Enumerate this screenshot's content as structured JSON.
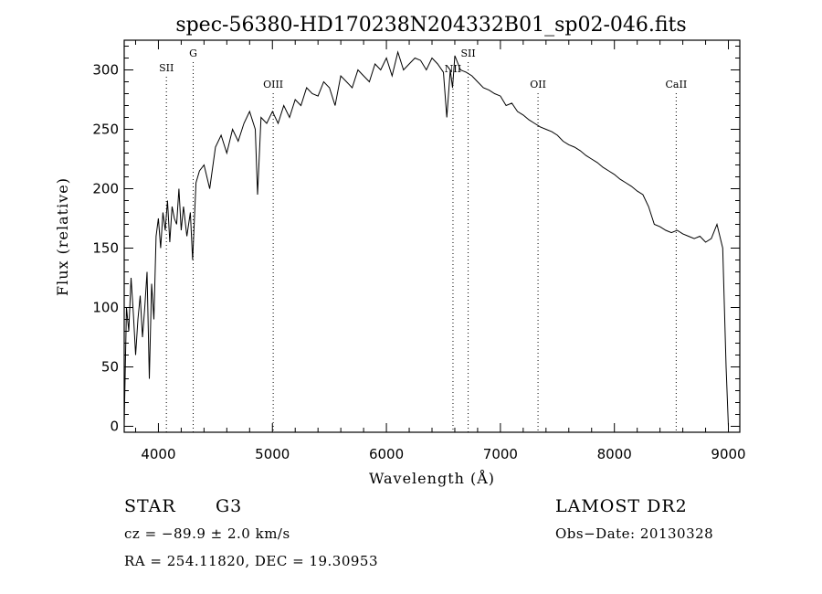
{
  "chart_data": {
    "type": "line",
    "title": "spec-56380-HD170238N204332B01_sp02-046.fits",
    "xlabel": "Wavelength (Å)",
    "ylabel": "Flux (relative)",
    "xlim": [
      3700,
      9100
    ],
    "ylim": [
      -5,
      325
    ],
    "xticks": [
      4000,
      5000,
      6000,
      7000,
      8000,
      9000
    ],
    "yticks": [
      0,
      50,
      100,
      150,
      200,
      250,
      300
    ],
    "grid": false,
    "series": [
      {
        "x": [
          3700,
          3720,
          3740,
          3760,
          3780,
          3800,
          3820,
          3840,
          3860,
          3880,
          3900,
          3920,
          3940,
          3960,
          3980,
          4000,
          4020,
          4040,
          4060,
          4080,
          4100,
          4120,
          4140,
          4160,
          4180,
          4200,
          4220,
          4250,
          4280,
          4300,
          4330,
          4360,
          4400,
          4450,
          4500,
          4550,
          4600,
          4650,
          4700,
          4750,
          4800,
          4850,
          4870,
          4900,
          4950,
          5000,
          5050,
          5100,
          5150,
          5200,
          5250,
          5300,
          5350,
          5400,
          5450,
          5500,
          5550,
          5600,
          5650,
          5700,
          5750,
          5800,
          5850,
          5900,
          5950,
          6000,
          6050,
          6100,
          6150,
          6200,
          6250,
          6300,
          6350,
          6400,
          6450,
          6500,
          6530,
          6560,
          6580,
          6600,
          6650,
          6700,
          6750,
          6800,
          6850,
          6900,
          6950,
          7000,
          7050,
          7100,
          7150,
          7200,
          7250,
          7300,
          7350,
          7400,
          7450,
          7500,
          7550,
          7600,
          7650,
          7700,
          7750,
          7800,
          7850,
          7900,
          7950,
          8000,
          8050,
          8100,
          8150,
          8200,
          8250,
          8300,
          8350,
          8400,
          8450,
          8500,
          8550,
          8600,
          8650,
          8700,
          8750,
          8800,
          8850,
          8900,
          8950,
          8980,
          9000
        ],
        "y": [
          2,
          100,
          80,
          125,
          95,
          60,
          90,
          110,
          75,
          100,
          130,
          40,
          120,
          90,
          160,
          175,
          150,
          180,
          165,
          190,
          155,
          185,
          175,
          170,
          200,
          165,
          185,
          160,
          180,
          140,
          205,
          215,
          220,
          200,
          235,
          245,
          230,
          250,
          240,
          255,
          265,
          250,
          195,
          260,
          255,
          265,
          255,
          270,
          260,
          275,
          270,
          285,
          280,
          278,
          290,
          285,
          270,
          295,
          290,
          285,
          300,
          295,
          290,
          305,
          300,
          310,
          295,
          315,
          300,
          305,
          310,
          308,
          300,
          310,
          305,
          298,
          260,
          300,
          285,
          312,
          300,
          298,
          295,
          290,
          285,
          283,
          280,
          278,
          270,
          272,
          265,
          262,
          258,
          255,
          252,
          250,
          248,
          245,
          240,
          237,
          235,
          232,
          228,
          225,
          222,
          218,
          215,
          212,
          208,
          205,
          202,
          198,
          195,
          185,
          170,
          168,
          165,
          163,
          165,
          162,
          160,
          158,
          160,
          155,
          158,
          170,
          150,
          50,
          0
        ]
      }
    ],
    "line_markers": [
      {
        "label": "SII",
        "x": 4070
      },
      {
        "label": "G",
        "x": 4305
      },
      {
        "label": "OIII",
        "x": 5007
      },
      {
        "label": "NII",
        "x": 6584
      },
      {
        "label": "SII",
        "x": 6717
      },
      {
        "label": "OII",
        "x": 7330
      },
      {
        "label": "CaII",
        "x": 8542
      }
    ]
  },
  "info": {
    "class": "STAR",
    "subclass": "G3",
    "survey": "LAMOST DR2",
    "cz": "cz = −89.9 ± 2.0 km/s",
    "obsdate": "Obs−Date: 20130328",
    "radec": "RA = 254.11820, DEC =  19.30953"
  }
}
